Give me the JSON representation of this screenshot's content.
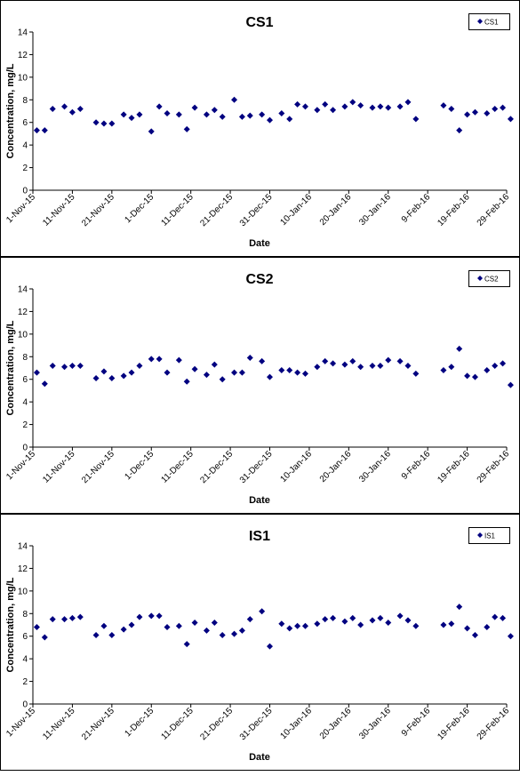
{
  "chart_data": [
    {
      "type": "scatter",
      "title": "CS1",
      "xlabel": "Date",
      "ylabel": "Concentration, mg/L",
      "legend": "CS1",
      "legend_position": "top-right",
      "grid": false,
      "color": "#000080",
      "ylim": [
        0,
        14
      ],
      "yticks": [
        0,
        2,
        4,
        6,
        8,
        10,
        12,
        14
      ],
      "xlim": [
        "2015-11-01",
        "2016-02-29"
      ],
      "xtick_labels": [
        "1-Nov-15",
        "11-Nov-15",
        "21-Nov-15",
        "1-Dec-15",
        "11-Dec-15",
        "21-Dec-15",
        "31-Dec-15",
        "10-Jan-16",
        "20-Jan-16",
        "30-Jan-16",
        "9-Feb-16",
        "19-Feb-16",
        "29-Feb-16"
      ],
      "points": [
        [
          "2015-11-02",
          5.3
        ],
        [
          "2015-11-04",
          5.3
        ],
        [
          "2015-11-06",
          7.2
        ],
        [
          "2015-11-09",
          7.4
        ],
        [
          "2015-11-11",
          6.9
        ],
        [
          "2015-11-13",
          7.2
        ],
        [
          "2015-11-17",
          6.0
        ],
        [
          "2015-11-19",
          5.9
        ],
        [
          "2015-11-21",
          5.9
        ],
        [
          "2015-11-24",
          6.7
        ],
        [
          "2015-11-26",
          6.4
        ],
        [
          "2015-11-28",
          6.7
        ],
        [
          "2015-12-01",
          5.2
        ],
        [
          "2015-12-03",
          7.4
        ],
        [
          "2015-12-05",
          6.8
        ],
        [
          "2015-12-08",
          6.7
        ],
        [
          "2015-12-10",
          5.4
        ],
        [
          "2015-12-12",
          7.3
        ],
        [
          "2015-12-15",
          6.7
        ],
        [
          "2015-12-17",
          7.1
        ],
        [
          "2015-12-19",
          6.5
        ],
        [
          "2015-12-22",
          8.0
        ],
        [
          "2015-12-24",
          6.5
        ],
        [
          "2015-12-26",
          6.6
        ],
        [
          "2015-12-29",
          6.7
        ],
        [
          "2015-12-31",
          6.2
        ],
        [
          "2016-01-03",
          6.8
        ],
        [
          "2016-01-05",
          6.3
        ],
        [
          "2016-01-07",
          7.6
        ],
        [
          "2016-01-09",
          7.4
        ],
        [
          "2016-01-12",
          7.1
        ],
        [
          "2016-01-14",
          7.6
        ],
        [
          "2016-01-16",
          7.1
        ],
        [
          "2016-01-19",
          7.4
        ],
        [
          "2016-01-21",
          7.8
        ],
        [
          "2016-01-23",
          7.5
        ],
        [
          "2016-01-26",
          7.3
        ],
        [
          "2016-01-28",
          7.4
        ],
        [
          "2016-01-30",
          7.3
        ],
        [
          "2016-02-02",
          7.4
        ],
        [
          "2016-02-04",
          7.8
        ],
        [
          "2016-02-06",
          6.3
        ],
        [
          "2016-02-13",
          7.5
        ],
        [
          "2016-02-15",
          7.2
        ],
        [
          "2016-02-17",
          5.3
        ],
        [
          "2016-02-19",
          6.7
        ],
        [
          "2016-02-21",
          6.9
        ],
        [
          "2016-02-24",
          6.8
        ],
        [
          "2016-02-26",
          7.2
        ],
        [
          "2016-02-28",
          7.3
        ],
        [
          "2016-03-01",
          6.3
        ]
      ]
    },
    {
      "type": "scatter",
      "title": "CS2",
      "xlabel": "Date",
      "ylabel": "Concentration, mg/L",
      "legend": "CS2",
      "legend_position": "top-right",
      "grid": false,
      "color": "#000080",
      "ylim": [
        0,
        14
      ],
      "yticks": [
        0,
        2,
        4,
        6,
        8,
        10,
        12,
        14
      ],
      "xlim": [
        "2015-11-01",
        "2016-02-29"
      ],
      "xtick_labels": [
        "1-Nov-15",
        "11-Nov-15",
        "21-Nov-15",
        "1-Dec-15",
        "11-Dec-15",
        "21-Dec-15",
        "31-Dec-15",
        "10-Jan-16",
        "20-Jan-16",
        "30-Jan-16",
        "9-Feb-16",
        "19-Feb-16",
        "29-Feb-16"
      ],
      "points": [
        [
          "2015-11-02",
          6.6
        ],
        [
          "2015-11-04",
          5.6
        ],
        [
          "2015-11-06",
          7.2
        ],
        [
          "2015-11-09",
          7.1
        ],
        [
          "2015-11-11",
          7.2
        ],
        [
          "2015-11-13",
          7.2
        ],
        [
          "2015-11-17",
          6.1
        ],
        [
          "2015-11-19",
          6.7
        ],
        [
          "2015-11-21",
          6.1
        ],
        [
          "2015-11-24",
          6.3
        ],
        [
          "2015-11-26",
          6.6
        ],
        [
          "2015-11-28",
          7.2
        ],
        [
          "2015-12-01",
          7.8
        ],
        [
          "2015-12-03",
          7.8
        ],
        [
          "2015-12-05",
          6.6
        ],
        [
          "2015-12-08",
          7.7
        ],
        [
          "2015-12-10",
          5.8
        ],
        [
          "2015-12-12",
          6.9
        ],
        [
          "2015-12-15",
          6.4
        ],
        [
          "2015-12-17",
          7.3
        ],
        [
          "2015-12-19",
          6.0
        ],
        [
          "2015-12-22",
          6.6
        ],
        [
          "2015-12-24",
          6.6
        ],
        [
          "2015-12-26",
          7.9
        ],
        [
          "2015-12-29",
          7.6
        ],
        [
          "2015-12-31",
          6.2
        ],
        [
          "2016-01-03",
          6.8
        ],
        [
          "2016-01-05",
          6.8
        ],
        [
          "2016-01-07",
          6.6
        ],
        [
          "2016-01-09",
          6.5
        ],
        [
          "2016-01-12",
          7.1
        ],
        [
          "2016-01-14",
          7.6
        ],
        [
          "2016-01-16",
          7.4
        ],
        [
          "2016-01-19",
          7.3
        ],
        [
          "2016-01-21",
          7.6
        ],
        [
          "2016-01-23",
          7.1
        ],
        [
          "2016-01-26",
          7.2
        ],
        [
          "2016-01-28",
          7.2
        ],
        [
          "2016-01-30",
          7.7
        ],
        [
          "2016-02-02",
          7.6
        ],
        [
          "2016-02-04",
          7.2
        ],
        [
          "2016-02-06",
          6.5
        ],
        [
          "2016-02-13",
          6.8
        ],
        [
          "2016-02-15",
          7.1
        ],
        [
          "2016-02-17",
          8.7
        ],
        [
          "2016-02-19",
          6.3
        ],
        [
          "2016-02-21",
          6.2
        ],
        [
          "2016-02-24",
          6.8
        ],
        [
          "2016-02-26",
          7.2
        ],
        [
          "2016-02-28",
          7.4
        ],
        [
          "2016-03-01",
          5.5
        ]
      ]
    },
    {
      "type": "scatter",
      "title": "IS1",
      "xlabel": "Date",
      "ylabel": "Concentration, mg/L",
      "legend": "IS1",
      "legend_position": "top-right",
      "grid": false,
      "color": "#000080",
      "ylim": [
        0,
        14
      ],
      "yticks": [
        0,
        2,
        4,
        6,
        8,
        10,
        12,
        14
      ],
      "xlim": [
        "2015-11-01",
        "2016-02-29"
      ],
      "xtick_labels": [
        "1-Nov-15",
        "11-Nov-15",
        "21-Nov-15",
        "1-Dec-15",
        "11-Dec-15",
        "21-Dec-15",
        "31-Dec-15",
        "10-Jan-16",
        "20-Jan-16",
        "30-Jan-16",
        "9-Feb-16",
        "19-Feb-16",
        "29-Feb-16"
      ],
      "points": [
        [
          "2015-11-02",
          6.8
        ],
        [
          "2015-11-04",
          5.9
        ],
        [
          "2015-11-06",
          7.5
        ],
        [
          "2015-11-09",
          7.5
        ],
        [
          "2015-11-11",
          7.6
        ],
        [
          "2015-11-13",
          7.7
        ],
        [
          "2015-11-17",
          6.1
        ],
        [
          "2015-11-19",
          6.9
        ],
        [
          "2015-11-21",
          6.1
        ],
        [
          "2015-11-24",
          6.6
        ],
        [
          "2015-11-26",
          7.0
        ],
        [
          "2015-11-28",
          7.7
        ],
        [
          "2015-12-01",
          7.8
        ],
        [
          "2015-12-03",
          7.8
        ],
        [
          "2015-12-05",
          6.8
        ],
        [
          "2015-12-08",
          6.9
        ],
        [
          "2015-12-10",
          5.3
        ],
        [
          "2015-12-12",
          7.2
        ],
        [
          "2015-12-15",
          6.5
        ],
        [
          "2015-12-17",
          7.2
        ],
        [
          "2015-12-19",
          6.1
        ],
        [
          "2015-12-22",
          6.2
        ],
        [
          "2015-12-24",
          6.5
        ],
        [
          "2015-12-26",
          7.5
        ],
        [
          "2015-12-29",
          8.2
        ],
        [
          "2015-12-31",
          5.1
        ],
        [
          "2016-01-03",
          7.1
        ],
        [
          "2016-01-05",
          6.7
        ],
        [
          "2016-01-07",
          6.9
        ],
        [
          "2016-01-09",
          6.9
        ],
        [
          "2016-01-12",
          7.1
        ],
        [
          "2016-01-14",
          7.5
        ],
        [
          "2016-01-16",
          7.6
        ],
        [
          "2016-01-19",
          7.3
        ],
        [
          "2016-01-21",
          7.6
        ],
        [
          "2016-01-23",
          7.0
        ],
        [
          "2016-01-26",
          7.4
        ],
        [
          "2016-01-28",
          7.6
        ],
        [
          "2016-01-30",
          7.2
        ],
        [
          "2016-02-02",
          7.8
        ],
        [
          "2016-02-04",
          7.4
        ],
        [
          "2016-02-06",
          6.9
        ],
        [
          "2016-02-13",
          7.0
        ],
        [
          "2016-02-15",
          7.1
        ],
        [
          "2016-02-17",
          8.6
        ],
        [
          "2016-02-19",
          6.7
        ],
        [
          "2016-02-21",
          6.1
        ],
        [
          "2016-02-24",
          6.8
        ],
        [
          "2016-02-26",
          7.7
        ],
        [
          "2016-02-28",
          7.6
        ],
        [
          "2016-03-01",
          6.0
        ]
      ]
    }
  ]
}
